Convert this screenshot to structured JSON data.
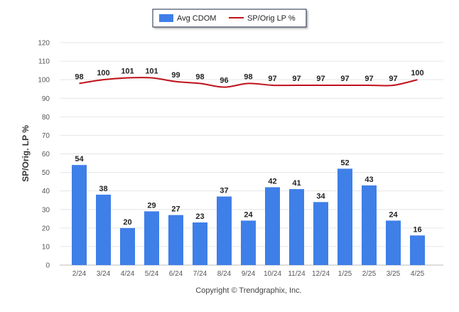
{
  "chart_data": {
    "type": "bar",
    "categories": [
      "2/24",
      "3/24",
      "4/24",
      "5/24",
      "6/24",
      "7/24",
      "8/24",
      "9/24",
      "10/24",
      "11/24",
      "12/24",
      "1/25",
      "2/25",
      "3/25",
      "4/25"
    ],
    "series": [
      {
        "name": "Avg CDOM",
        "type": "bar",
        "color": "#3f7fe8",
        "values": [
          54,
          38,
          20,
          29,
          27,
          23,
          37,
          24,
          42,
          41,
          34,
          52,
          43,
          24,
          16
        ]
      },
      {
        "name": "SP/Orig LP %",
        "type": "line",
        "color": "#c0101a",
        "values": [
          98,
          100,
          101,
          101,
          99,
          98,
          96,
          98,
          97,
          97,
          97,
          97,
          97,
          97,
          100
        ]
      }
    ],
    "title": "",
    "xlabel": "",
    "ylabel": "SP/Orig. LP %",
    "ylim": [
      0,
      120
    ],
    "yticks": [
      0,
      10,
      20,
      30,
      40,
      50,
      60,
      70,
      80,
      90,
      100,
      110,
      120
    ],
    "grid": true,
    "legend_position": "top-center"
  },
  "legend": {
    "bar_label": "Avg CDOM",
    "line_label": "SP/Orig LP %"
  },
  "footer": {
    "copyright": "Copyright © Trendgraphix, Inc."
  }
}
